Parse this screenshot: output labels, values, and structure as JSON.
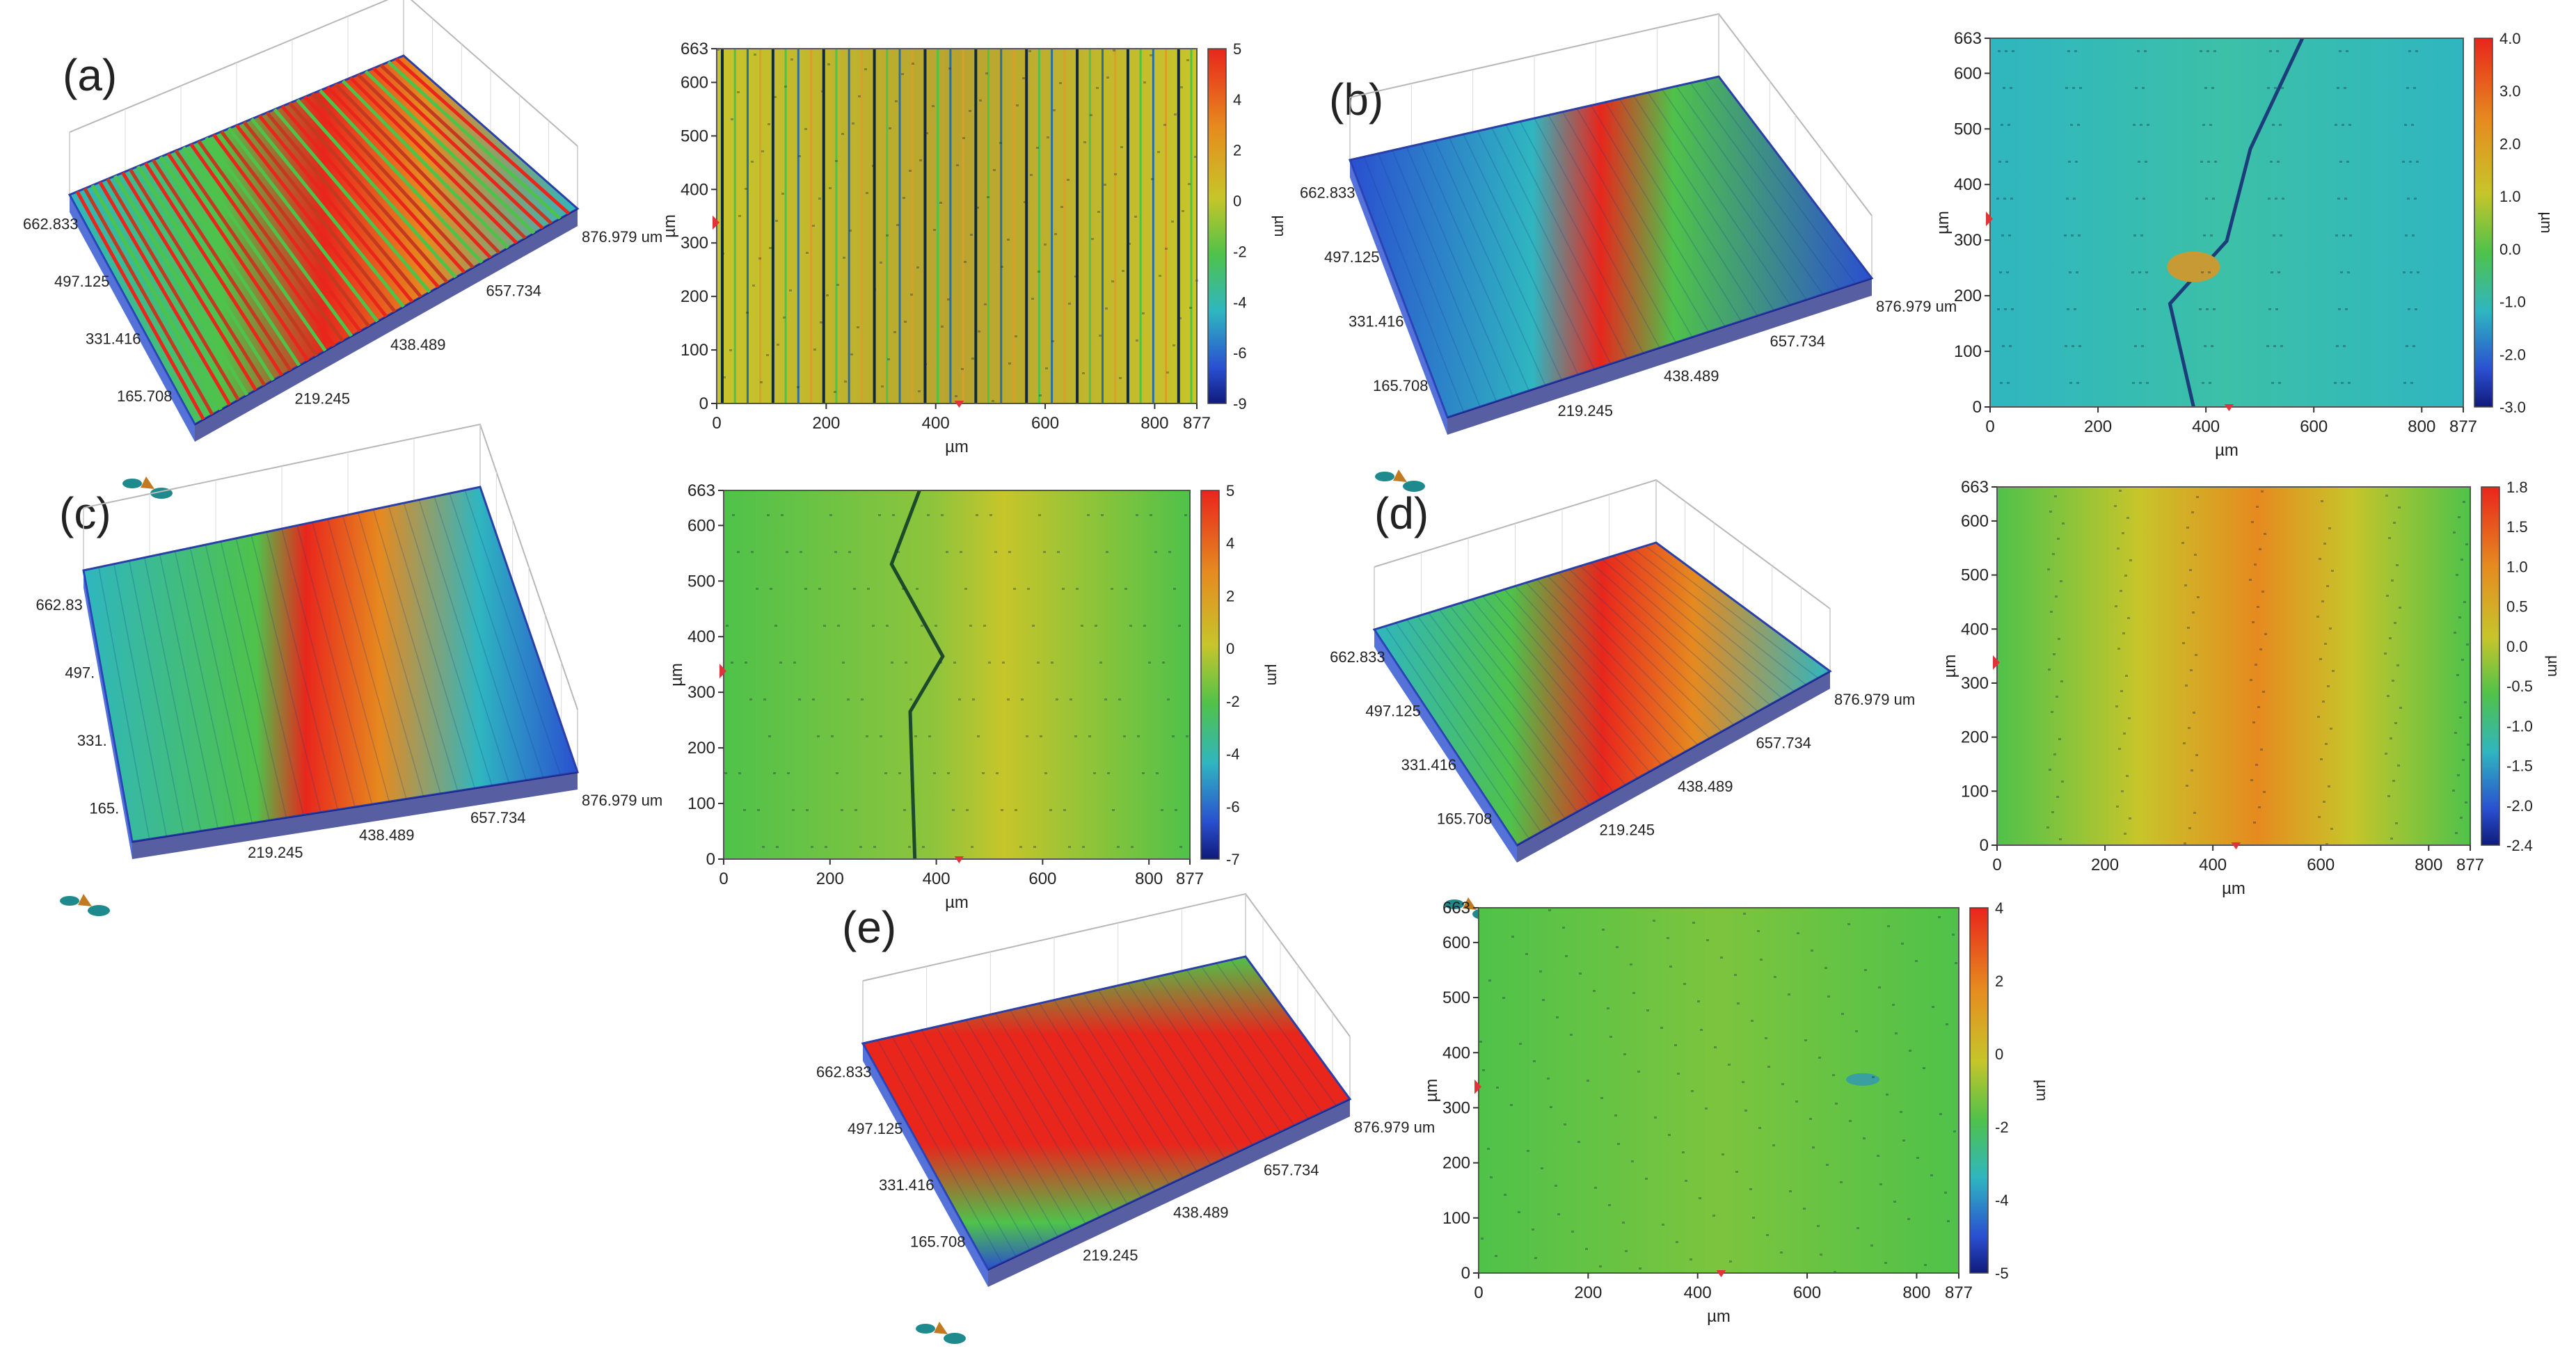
{
  "panels": [
    {
      "id": "a",
      "label": "(a)",
      "pattern": "stripes",
      "view3d": {
        "y_ticks": [
          "662.833",
          "497.125",
          "331.416",
          "165.708"
        ],
        "x_ticks": [
          "219.245",
          "438.489",
          "657.734",
          "876.979 um"
        ]
      },
      "map": {
        "y_label": "µm",
        "x_label": "µm",
        "x_ticks": [
          "0",
          "200",
          "400",
          "600",
          "800",
          "877"
        ],
        "y_ticks": [
          "0",
          "100",
          "200",
          "300",
          "400",
          "500",
          "600",
          "663"
        ],
        "colorbar_ticks": [
          "5",
          "4",
          "2",
          "0",
          "-2",
          "-4",
          "-6",
          "-9"
        ],
        "colorbar_unit": "µm"
      }
    },
    {
      "id": "b",
      "label": "(b)",
      "pattern": "crack",
      "view3d": {
        "y_ticks": [
          "662.833",
          "497.125",
          "331.416",
          "165.708"
        ],
        "x_ticks": [
          "219.245",
          "438.489",
          "657.734",
          "876.979 um"
        ]
      },
      "map": {
        "y_label": "µm",
        "x_label": "µm",
        "x_ticks": [
          "0",
          "200",
          "400",
          "600",
          "800",
          "877"
        ],
        "y_ticks": [
          "0",
          "100",
          "200",
          "300",
          "400",
          "500",
          "600",
          "663"
        ],
        "colorbar_ticks": [
          "4.0",
          "3.0",
          "2.0",
          "1.0",
          "0.0",
          "-1.0",
          "-2.0",
          "-3.0"
        ],
        "colorbar_unit": "µm"
      }
    },
    {
      "id": "c",
      "label": "(c)",
      "pattern": "step",
      "view3d": {
        "y_ticks": [
          "662.83",
          "497.",
          "331.",
          "165."
        ],
        "x_ticks": [
          "219.245",
          "438.489",
          "657.734",
          "876.979 um"
        ]
      },
      "map": {
        "y_label": "µm",
        "x_label": "µm",
        "x_ticks": [
          "0",
          "200",
          "400",
          "600",
          "800",
          "877"
        ],
        "y_ticks": [
          "0",
          "100",
          "200",
          "300",
          "400",
          "500",
          "600",
          "663"
        ],
        "colorbar_ticks": [
          "5",
          "4",
          "2",
          "0",
          "-2",
          "-4",
          "-6",
          "-7"
        ],
        "colorbar_unit": "µm"
      }
    },
    {
      "id": "d",
      "label": "(d)",
      "pattern": "ridge",
      "view3d": {
        "y_ticks": [
          "662.833",
          "497.125",
          "331.416",
          "165.708"
        ],
        "x_ticks": [
          "219.245",
          "438.489",
          "657.734",
          "876.979 um"
        ]
      },
      "map": {
        "y_label": "µm",
        "x_label": "µm",
        "x_ticks": [
          "0",
          "200",
          "400",
          "600",
          "800",
          "877"
        ],
        "y_ticks": [
          "0",
          "100",
          "200",
          "300",
          "400",
          "500",
          "600",
          "663"
        ],
        "colorbar_ticks": [
          "1.8",
          "1.5",
          "1.0",
          "0.5",
          "0.0",
          "-0.5",
          "-1.0",
          "-1.5",
          "-2.0",
          "-2.4"
        ],
        "colorbar_unit": "µm"
      }
    },
    {
      "id": "e",
      "label": "(e)",
      "pattern": "flat",
      "view3d": {
        "y_ticks": [
          "662.833",
          "497.125",
          "331.416",
          "165.708"
        ],
        "x_ticks": [
          "219.245",
          "438.489",
          "657.734",
          "876.979 um"
        ]
      },
      "map": {
        "y_label": "µm",
        "x_label": "µm",
        "x_ticks": [
          "0",
          "200",
          "400",
          "600",
          "800",
          "877"
        ],
        "y_ticks": [
          "0",
          "100",
          "200",
          "300",
          "400",
          "500",
          "600",
          "663"
        ],
        "colorbar_ticks": [
          "4",
          "2",
          "0",
          "-2",
          "-4",
          "-5"
        ],
        "colorbar_unit": "µm"
      }
    }
  ],
  "colors": {
    "red": "#e8261c",
    "orange": "#e68a1f",
    "yellow": "#c7c52a",
    "green": "#4fc24a",
    "cyan": "#2fb6c0",
    "blue": "#2a4fd0",
    "navy": "#101a7a",
    "marker": "#e0333a"
  }
}
